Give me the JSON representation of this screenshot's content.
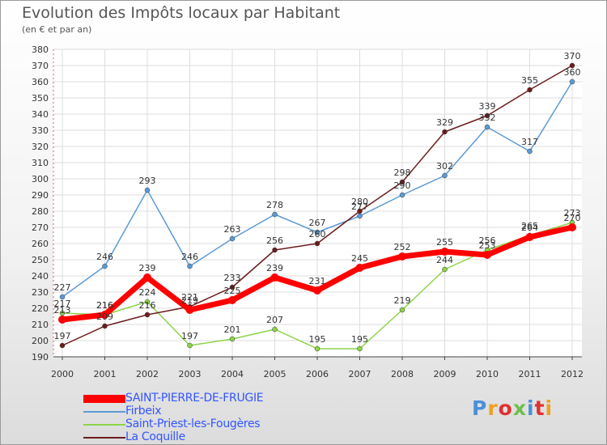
{
  "title": "Evolution des Impôts locaux par Habitant",
  "subtitle": "(en € et par an)",
  "logo_text": "Proxiti",
  "colors": {
    "series": [
      "#ff0000",
      "#5b9bd5",
      "#8cd448",
      "#6b1c1c"
    ],
    "logo": [
      "#4a90d9",
      "#f0a020",
      "#e03030",
      "#6cc04a",
      "#4a90d9",
      "#e03030",
      "#f0a020"
    ]
  },
  "chart_data": {
    "type": "line",
    "title": "Evolution des Impôts locaux par Habitant",
    "subtitle": "(en € et par an)",
    "xlabel": "",
    "ylabel": "",
    "x": [
      "2000",
      "2001",
      "2002",
      "2003",
      "2004",
      "2005",
      "2006",
      "2007",
      "2008",
      "2009",
      "2010",
      "2011",
      "2012"
    ],
    "ylim": [
      190,
      380
    ],
    "yticks": [
      190,
      200,
      210,
      220,
      230,
      240,
      250,
      260,
      270,
      280,
      290,
      300,
      310,
      320,
      330,
      340,
      350,
      360,
      370,
      380
    ],
    "grid": true,
    "legend_position": "bottom-left",
    "series": [
      {
        "name": "SAINT-PIERRE-DE-FRUGIE",
        "values": [
          213,
          216,
          239,
          219,
          225,
          239,
          231,
          245,
          252,
          255,
          253,
          264,
          270
        ]
      },
      {
        "name": "Firbeix",
        "values": [
          227,
          246,
          293,
          246,
          263,
          278,
          267,
          277,
          290,
          302,
          332,
          317,
          360
        ]
      },
      {
        "name": "Saint-Priest-les-Fougères",
        "values": [
          217,
          216,
          224,
          197,
          201,
          207,
          195,
          195,
          219,
          244,
          256,
          265,
          273
        ]
      },
      {
        "name": "La Coquille",
        "values": [
          197,
          209,
          216,
          221,
          233,
          256,
          260,
          280,
          298,
          329,
          339,
          355,
          370
        ]
      }
    ]
  }
}
